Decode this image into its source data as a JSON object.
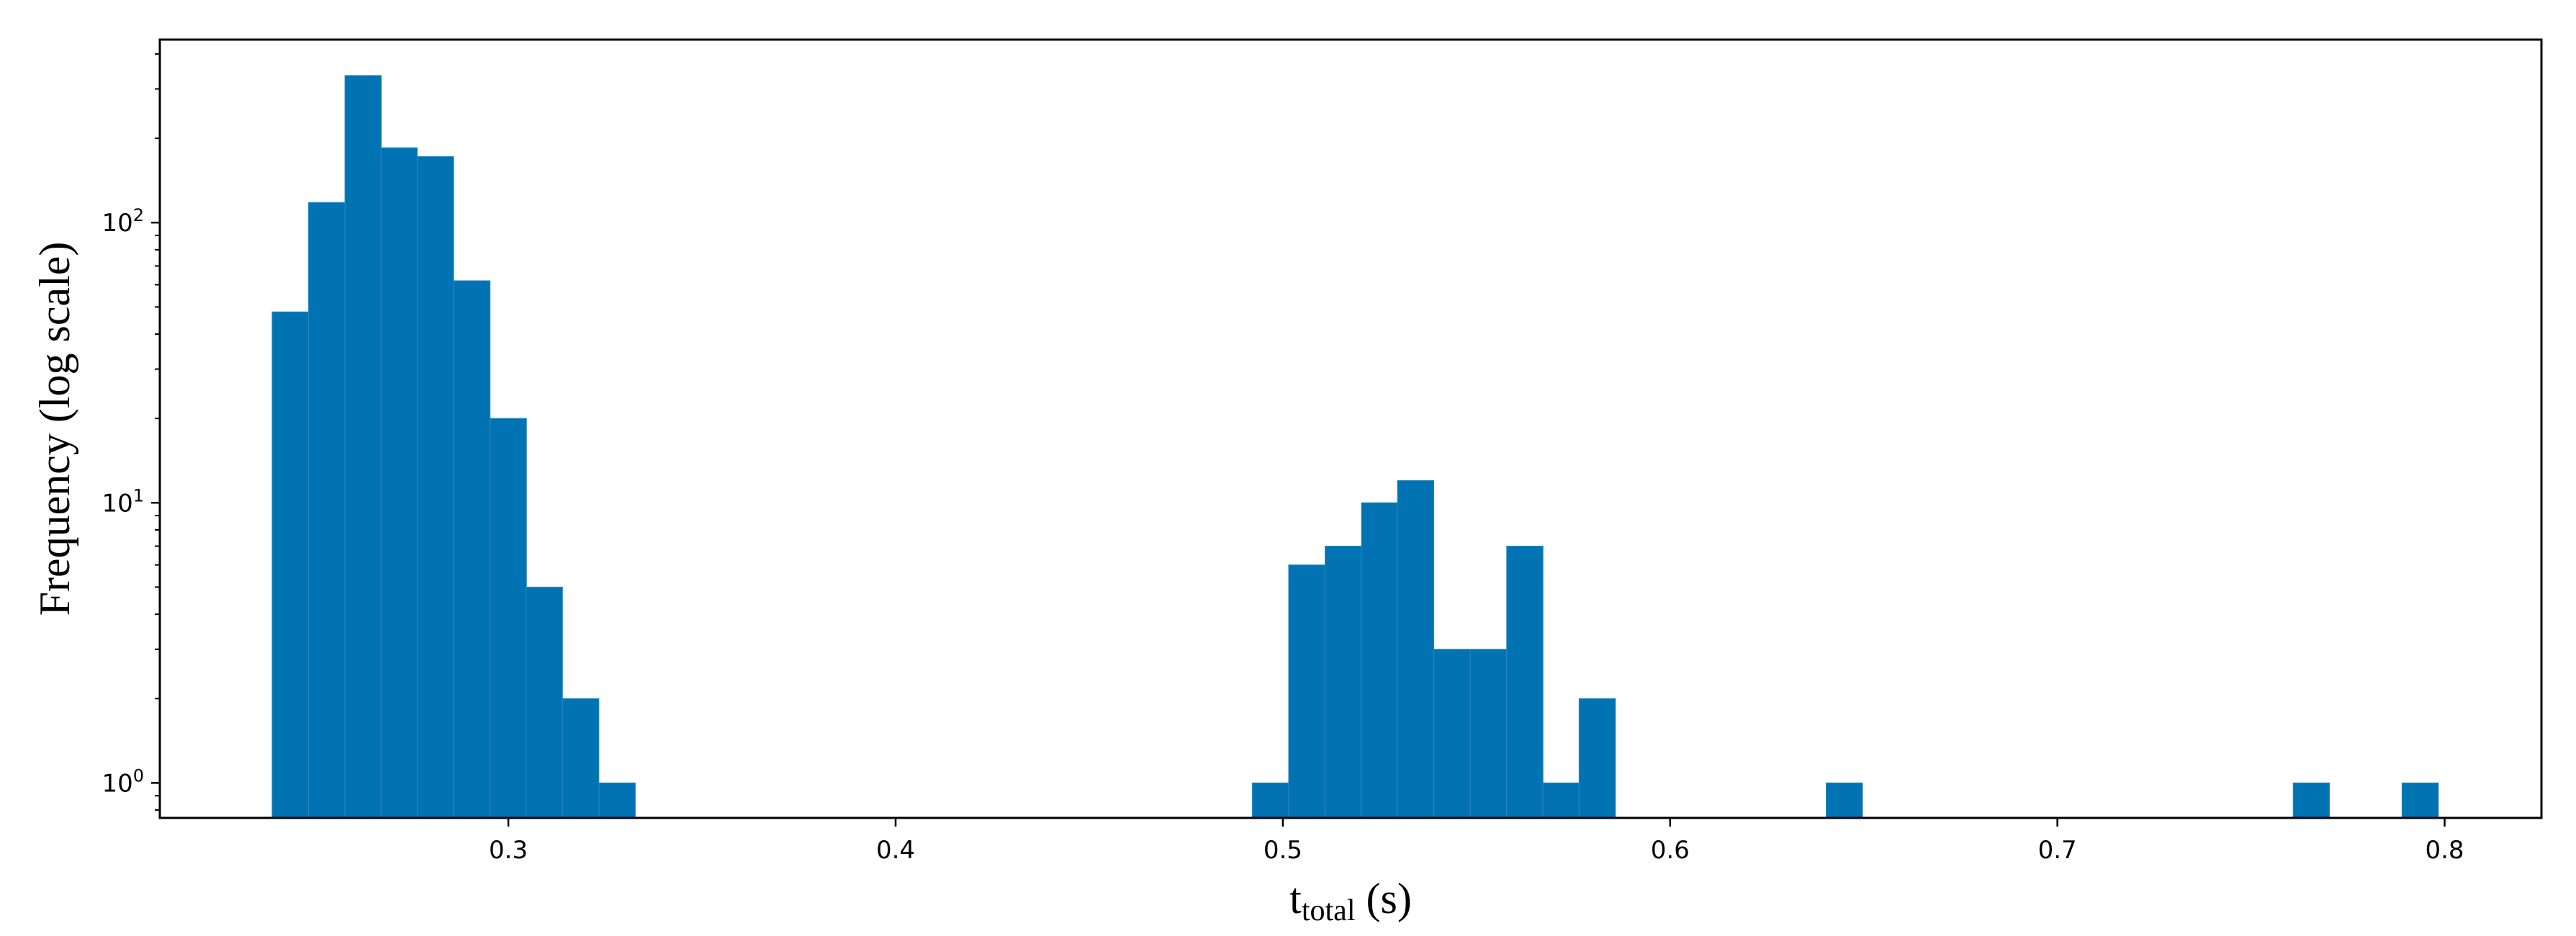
{
  "chart_data": {
    "type": "bar",
    "subtype": "histogram",
    "title": "",
    "xlabel_main": "t",
    "xlabel_sub": "total",
    "xlabel_unit": " (s)",
    "ylabel": "Frequency (log scale)",
    "y_scale": "log",
    "xlim": [
      0.21,
      0.825
    ],
    "ylim": [
      0.75,
      450
    ],
    "x_ticks": [
      0.3,
      0.4,
      0.5,
      0.6,
      0.7,
      0.8
    ],
    "x_tick_labels": [
      "0.3",
      "0.4",
      "0.5",
      "0.6",
      "0.7",
      "0.8"
    ],
    "y_ticks": [
      1,
      10,
      100
    ],
    "y_tick_labels": [
      {
        "base": "10",
        "exp": "0"
      },
      {
        "base": "10",
        "exp": "1"
      },
      {
        "base": "10",
        "exp": "2"
      }
    ],
    "bar_color": "#0173b2",
    "bin_width": 0.009375,
    "bins": [
      {
        "x": 0.239,
        "count": 48
      },
      {
        "x": 0.2484,
        "count": 118
      },
      {
        "x": 0.2578,
        "count": 335
      },
      {
        "x": 0.2671,
        "count": 185
      },
      {
        "x": 0.2765,
        "count": 172
      },
      {
        "x": 0.2859,
        "count": 62
      },
      {
        "x": 0.2953,
        "count": 20
      },
      {
        "x": 0.3046,
        "count": 5
      },
      {
        "x": 0.314,
        "count": 2
      },
      {
        "x": 0.3234,
        "count": 1
      },
      {
        "x": 0.4921,
        "count": 1
      },
      {
        "x": 0.5015,
        "count": 6
      },
      {
        "x": 0.5109,
        "count": 7
      },
      {
        "x": 0.5203,
        "count": 10
      },
      {
        "x": 0.5296,
        "count": 12
      },
      {
        "x": 0.539,
        "count": 3
      },
      {
        "x": 0.5484,
        "count": 3
      },
      {
        "x": 0.5578,
        "count": 7
      },
      {
        "x": 0.5671,
        "count": 1
      },
      {
        "x": 0.5765,
        "count": 2
      },
      {
        "x": 0.6403,
        "count": 1
      },
      {
        "x": 0.7609,
        "count": 1
      },
      {
        "x": 0.789,
        "count": 1
      }
    ],
    "grid": false,
    "legend": null
  }
}
